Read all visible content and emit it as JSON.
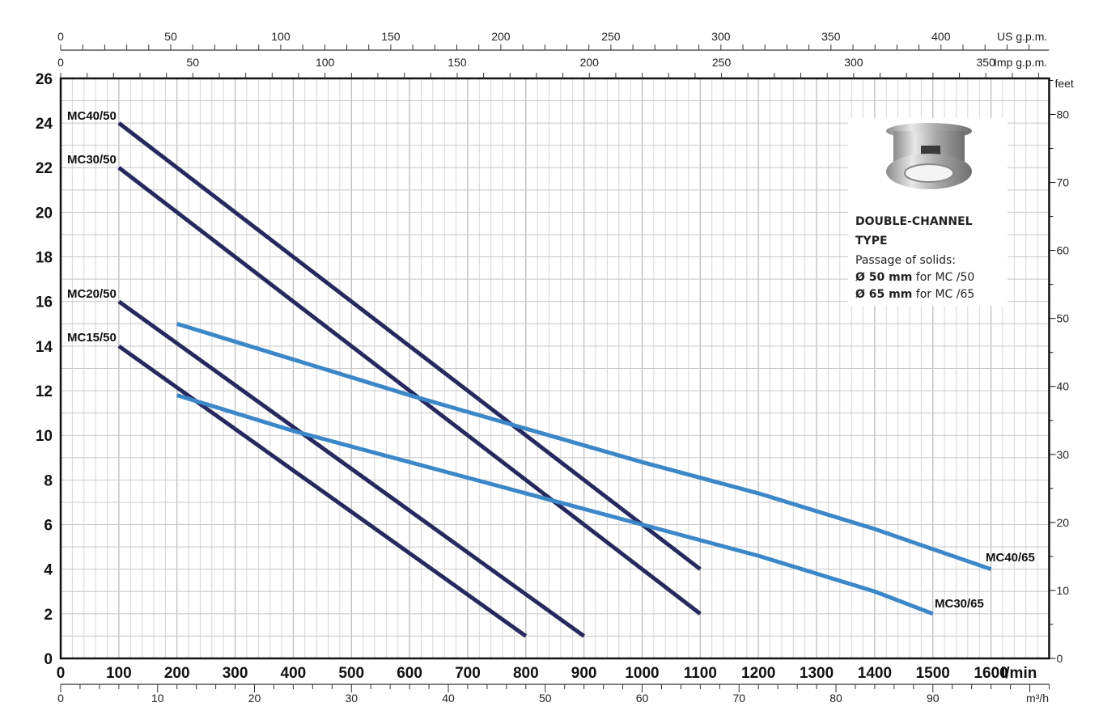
{
  "chart_data": {
    "type": "line",
    "title": "",
    "xlabel": "l/min",
    "ylabel": "",
    "xlim": [
      0,
      1700
    ],
    "ylim": [
      0,
      26
    ],
    "grid": true,
    "x_ticks": [
      0,
      100,
      200,
      300,
      400,
      500,
      600,
      700,
      800,
      900,
      1000,
      1100,
      1200,
      1300,
      1400,
      1500,
      1600
    ],
    "y_ticks": [
      0,
      2,
      4,
      6,
      8,
      10,
      12,
      14,
      16,
      18,
      20,
      22,
      24,
      26
    ],
    "secondary_axes": {
      "right": {
        "label": "feet",
        "ticks": [
          0,
          10,
          20,
          30,
          40,
          50,
          60,
          70,
          80
        ]
      },
      "top_us": {
        "label": "US g.p.m.",
        "ticks": [
          0,
          50,
          100,
          150,
          200,
          250,
          300,
          350,
          400
        ]
      },
      "top_imp": {
        "label": "Imp g.p.m.",
        "ticks": [
          0,
          50,
          100,
          150,
          200,
          250,
          300,
          350
        ]
      },
      "bottom_m3h": {
        "label": "m³/h",
        "ticks": [
          0,
          10,
          20,
          30,
          40,
          50,
          60,
          70,
          80,
          90
        ]
      }
    },
    "series": [
      {
        "name": "MC40/50",
        "color": "#27295e",
        "x": [
          100,
          1100
        ],
        "y": [
          24,
          4
        ]
      },
      {
        "name": "MC30/50",
        "color": "#27295e",
        "x": [
          100,
          1100
        ],
        "y": [
          22,
          2
        ]
      },
      {
        "name": "MC20/50",
        "color": "#27295e",
        "x": [
          100,
          900
        ],
        "y": [
          16,
          1
        ]
      },
      {
        "name": "MC15/50",
        "color": "#27295e",
        "x": [
          100,
          800
        ],
        "y": [
          14,
          1
        ]
      },
      {
        "name": "MC40/65",
        "color": "#3b87c8",
        "x": [
          200,
          400,
          600,
          800,
          1000,
          1200,
          1400,
          1600
        ],
        "y": [
          15,
          13.4,
          11.8,
          10.3,
          8.8,
          7.4,
          5.8,
          4
        ]
      },
      {
        "name": "MC30/65",
        "color": "#3b87c8",
        "x": [
          200,
          400,
          600,
          800,
          1000,
          1200,
          1400,
          1500
        ],
        "y": [
          11.8,
          10.2,
          8.8,
          7.4,
          6,
          4.6,
          3,
          2
        ]
      }
    ]
  },
  "inset": {
    "title_line1": "DOUBLE-CHANNEL",
    "title_line2": "TYPE",
    "subtitle": "Passage of solids:",
    "line1_bold": "Ø 50 mm",
    "line1_rest": " for MC /50",
    "line2_bold": "Ø 65 mm",
    "line2_rest": " for MC /65",
    "image": "double-channel-impeller"
  }
}
